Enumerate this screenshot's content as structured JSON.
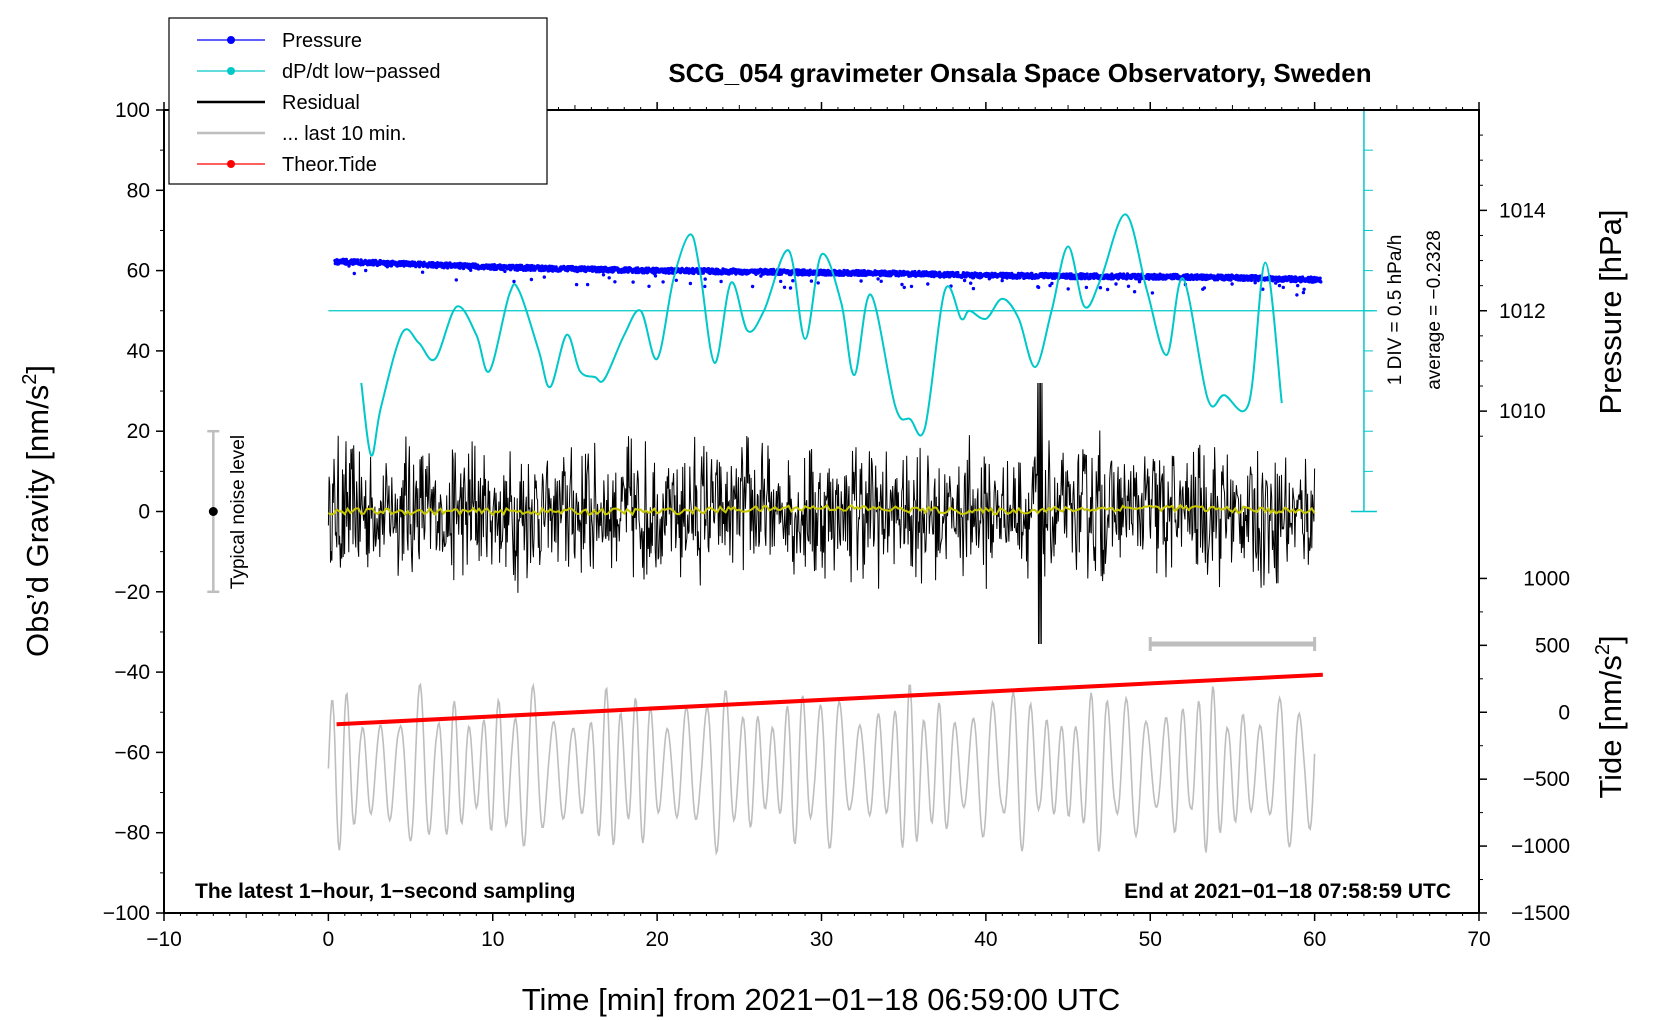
{
  "chart_data": {
    "type": "line",
    "title": "SCG_054 gravimeter Onsala Space Observatory, Sweden",
    "xlabel": "Time [min] from 2021−01−18 06:59:00 UTC",
    "ylabel_left": "Obs’d Gravity [nm/s",
    "ylabel_left_sup": "2",
    "ylabel_left_close": "]",
    "ylabel_right_pressure": "Pressure [hPa]",
    "ylabel_right_tide": "Tide [nm/s",
    "ylabel_right_tide_sup": "2",
    "ylabel_right_tide_close": "]",
    "xlim": [
      -10,
      70
    ],
    "ylim_left": [
      -100,
      100
    ],
    "x_ticks": [
      -10,
      0,
      10,
      20,
      30,
      40,
      50,
      60,
      70
    ],
    "x_tick_labels": [
      "−10",
      "0",
      "10",
      "20",
      "30",
      "40",
      "50",
      "60",
      "70"
    ],
    "y_ticks_left": [
      -100,
      -80,
      -60,
      -40,
      -20,
      0,
      20,
      40,
      60,
      80,
      100
    ],
    "y_tick_labels_left": [
      "−100",
      "−80",
      "−60",
      "−40",
      "−20",
      "0",
      "20",
      "40",
      "60",
      "80",
      "100"
    ],
    "pressure_axis": {
      "ticks": [
        1010,
        1012,
        1014
      ],
      "labels": [
        "1010",
        "1012",
        "1014"
      ],
      "left_value_at_1012": 50,
      "left_units_per_hpa": 12.5
    },
    "tide_axis": {
      "ticks": [
        -1500,
        -1000,
        -500,
        0,
        500,
        1000
      ],
      "labels": [
        "−1500",
        "−1000",
        "−500",
        "0",
        "500",
        "1000"
      ],
      "left_value_at_zero": -50,
      "left_units_per_1000": 33.33
    },
    "legend": [
      {
        "label": "Pressure",
        "color": "#0000ff",
        "marker": "dot"
      },
      {
        "label": "dP/dt low−passed",
        "color": "#00c8c8",
        "marker": "dot"
      },
      {
        "label": "Residual",
        "color": "#000000",
        "marker": "none"
      },
      {
        "label": "... last 10 min.",
        "color": "#bebebe",
        "marker": "none"
      },
      {
        "label": "Theor.Tide",
        "color": "#ff0000",
        "marker": "dot"
      }
    ],
    "legend_position": "top-left",
    "series": [
      {
        "name": "Pressure",
        "color": "#0000ff",
        "units": "hPa",
        "x": [
          0.5,
          5,
          10,
          15,
          20,
          25,
          30,
          35,
          40,
          45,
          50,
          55,
          60
        ],
        "values": [
          1012.98,
          1012.93,
          1012.87,
          1012.83,
          1012.8,
          1012.78,
          1012.76,
          1012.74,
          1012.7,
          1012.69,
          1012.68,
          1012.66,
          1012.62
        ]
      },
      {
        "name": "dP/dt low-passed",
        "color": "#00c8c8",
        "units": "left-axis units (1 DIV = 0.5 hPa/h, zero at 50)",
        "x": [
          2,
          2.6,
          3.2,
          4.5,
          5.5,
          6.5,
          7.8,
          9,
          9.8,
          11,
          11.6,
          12.8,
          13.5,
          14.5,
          15.3,
          16.2,
          16.8,
          18,
          19,
          20,
          21,
          22,
          22.6,
          23.5,
          24.5,
          25.5,
          26.5,
          28,
          29,
          30,
          31.2,
          32,
          33,
          34.5,
          35.4,
          36.3,
          37.5,
          38.5,
          39,
          40,
          41,
          42,
          43,
          44,
          45,
          46,
          47,
          48.5,
          49.8,
          51,
          52,
          53.5,
          54.5,
          56,
          57,
          58
        ],
        "values": [
          32,
          14,
          26,
          44.5,
          42,
          38,
          51,
          44,
          35,
          54,
          55,
          40,
          31,
          44,
          35,
          33.5,
          33,
          44,
          50,
          38,
          58,
          69,
          60,
          37,
          57,
          45,
          50,
          65,
          43,
          64,
          52,
          34,
          54,
          26,
          23,
          21,
          55,
          48,
          50,
          48,
          53,
          48,
          36,
          50,
          66,
          51,
          58,
          74,
          55,
          39,
          58,
          28,
          29,
          27,
          62,
          27
        ]
      },
      {
        "name": "Residual",
        "color": "#000000",
        "units": "nm/s2",
        "x": [
          0,
          10,
          20,
          30,
          40,
          43.3,
          50,
          60
        ],
        "values": [
          0,
          0,
          0,
          0,
          0,
          0,
          0,
          0
        ],
        "envelope_max": 32,
        "envelope_min": -33
      },
      {
        "name": "Residual low-passed",
        "color": "#c8c800",
        "units": "nm/s2",
        "x": [
          0,
          10,
          20,
          30,
          40,
          50,
          60
        ],
        "values": [
          0,
          0,
          0,
          1,
          0,
          1,
          0
        ]
      },
      {
        "name": "... last 10 min.",
        "color": "#bebebe",
        "units": "left-axis units",
        "x": [
          0,
          10,
          20,
          30,
          40,
          50,
          60
        ],
        "values": [
          -64,
          -64,
          -64,
          -64,
          -64,
          -64,
          -64
        ],
        "envelope_max": -41,
        "envelope_min": -84
      },
      {
        "name": "Theor.Tide",
        "color": "#ff0000",
        "units": "nm/s2",
        "x": [
          0.5,
          60.5
        ],
        "values": [
          -90,
          280
        ]
      }
    ],
    "noise_bar": {
      "label": "Typical noise level",
      "x": -7,
      "center": 0,
      "low": -20,
      "high": 20
    },
    "range_bar": {
      "x_start": 50,
      "x_end": 60,
      "y": -33
    },
    "dpdt_scale_label": "1 DIV = 0.5 hPa/h",
    "dpdt_average_label": "average = −0.2328",
    "footer_left": "The latest 1−hour, 1−second sampling",
    "footer_right": "End at 2021−01−18 07:58:59 UTC"
  }
}
